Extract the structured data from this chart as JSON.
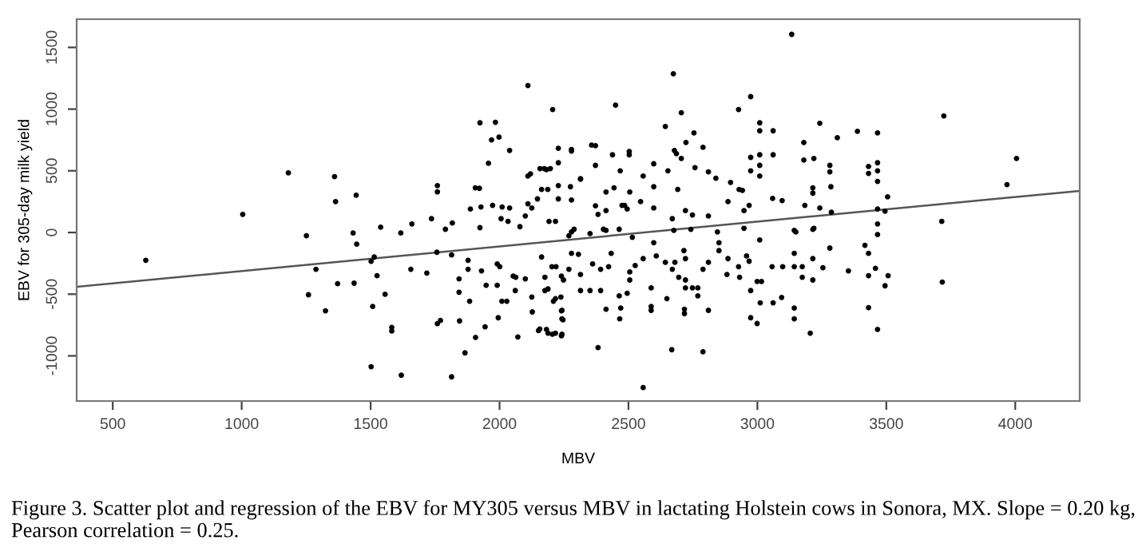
{
  "chart_data": {
    "type": "scatter",
    "xlabel": "MBV",
    "ylabel": "EBV for 305-day milk yield",
    "annotations": [
      "Figure 3. Scatter plot and regression of the EBV for MY305 versus MBV in lactating Holstein cows in Sonora, MX. Slope = 0.20 kg, Pearson correlation = 0.25."
    ],
    "xlim": [
      360,
      4250
    ],
    "ylim": [
      -1366,
      1729
    ],
    "xticks": [
      500,
      1000,
      1500,
      2000,
      2500,
      3000,
      3500,
      4000
    ],
    "yticks": [
      -1000,
      -500,
      0,
      500,
      1000,
      1500
    ],
    "grid": false,
    "series": [
      {
        "marker": "circle",
        "color": "#000000",
        "x": [
          1004,
          1181,
          1360,
          1364,
          1444,
          1432,
          1539,
          1617,
          1660,
          1736,
          1759,
          1759,
          1790,
          1817,
          1887,
          1906,
          1922,
          1924,
          1928,
          1924,
          1957,
          1969,
          1984,
          1998,
          1973,
          2006,
          2010,
          2039,
          2039,
          2033,
          2110,
          2110,
          2120,
          2110,
          2125,
          2147,
          2157,
          2174,
          2163,
          2192,
          2206,
          2228,
          2228,
          2228,
          2228,
          2079,
          2100,
          628,
          1251,
          1259,
          1288,
          1325,
          1372,
          1436,
          1446,
          1502,
          1502,
          1508,
          1514,
          1525,
          1556,
          1582,
          1582,
          1619,
          1656,
          1718,
          1757,
          1759,
          1771,
          1814,
          1814,
          1843,
          1843,
          1845,
          1866,
          1878,
          1878,
          1884,
          1907,
          1944,
          1948,
          1930,
          1991,
          1995,
          1991,
          2001,
          2009,
          2028,
          2053,
          2063,
          2071,
          2061,
          2100,
          2125,
          2127,
          2151,
          2156,
          2163,
          2188,
          2205,
          2209,
          2240,
          2246,
          2240,
          2188,
          2240,
          2269,
          2219,
          2450,
          3133,
          2674,
          2705,
          2643,
          2974,
          2927,
          3009,
          3009,
          3061,
          3242,
          3388,
          3466,
          3310,
          3723,
          4005,
          3968,
          3715,
          2754,
          2723,
          2789,
          2678,
          2686,
          2705,
          3180,
          3061,
          3180,
          3219,
          3281,
          3281,
          3431,
          3431,
          3466,
          3466,
          3466,
          3505,
          3285,
          3215,
          3215,
          3009,
          3009,
          3009,
          2974,
          2974,
          2503,
          2503,
          2438,
          2357,
          2372,
          2279,
          2279,
          2372,
          2314,
          2314,
          2275,
          2468,
          2557,
          2598,
          2653,
          2758,
          2810,
          2839,
          2896,
          2929,
          2942,
          3059,
          3096,
          3184,
          3242,
          3287,
          3466,
          3495,
          2413,
          2444,
          2505,
          2598,
          2691,
          2547,
          2475,
          2372,
          2279,
          2187,
          2182,
          2197,
          2886,
          2968,
          2948,
          2721,
          2748,
          2670,
          2810,
          2598,
          2495,
          2485,
          2382,
          2413,
          2217,
          2289,
          2403,
          3149,
          3219,
          3466,
          3466,
          2557,
          2668,
          2789,
          2382,
          2182,
          2217,
          2242,
          2242,
          2242,
          2413,
          2470,
          2466,
          2588,
          2588,
          2717,
          2717,
          2810,
          2649,
          2974,
          2999,
          3011,
          3061,
          3094,
          3143,
          3143,
          3205,
          3431,
          3466,
          3495,
          3507,
          3431,
          3458,
          3353,
          3717,
          3417,
          3431,
          3281,
          3254,
          3215,
          3215,
          3174,
          3174,
          3143,
          3143,
          3098,
          3057,
          3016,
          2999,
          2974,
          2958,
          2968,
          2927,
          2931,
          2882,
          2886,
          2851,
          2851,
          2810,
          2789,
          2769,
          2769,
          2721,
          2721,
          2748,
          2715,
          2721,
          2670,
          2695,
          2643,
          2680,
          2608,
          2588,
          2557,
          2505,
          2505,
          2526,
          2495,
          2464,
          2433,
          2423,
          2392,
          2392,
          2351,
          2361,
          2314,
          2314,
          2279,
          2306,
          2248,
          2217,
          2238,
          2176,
          2176,
          2203,
          2269,
          2279,
          2351,
          2413,
          2464,
          2515,
          2598,
          2676,
          2742,
          2845,
          2948,
          3009,
          3143,
          3215
        ],
        "values": [
          147,
          483,
          453,
          250,
          302,
          -4,
          43,
          -4,
          69,
          112,
          380,
          329,
          26,
          77,
          190,
          362,
          358,
          889,
          207,
          39,
          561,
          751,
          893,
          773,
          220,
          112,
          207,
          665,
          198,
          90,
          1191,
          457,
          475,
          233,
          198,
          272,
          518,
          518,
          349,
          90,
          997,
          682,
          565,
          380,
          272,
          47,
          134,
          -225,
          -26,
          -505,
          -298,
          -635,
          -415,
          -411,
          -95,
          -234,
          -1088,
          -600,
          -199,
          -350,
          -501,
          -769,
          -799,
          -1157,
          -298,
          -329,
          -160,
          -739,
          -713,
          -1170,
          -182,
          -376,
          -484,
          -717,
          -976,
          -225,
          -298,
          -557,
          -851,
          -765,
          -428,
          -311,
          -428,
          -691,
          -255,
          -277,
          -557,
          -557,
          -354,
          -363,
          -847,
          -471,
          -376,
          -523,
          -644,
          -795,
          -782,
          -199,
          -817,
          -825,
          -557,
          -635,
          -708,
          -354,
          -458,
          -838,
          -26,
          -277,
          1032,
          1606,
          1286,
          971,
          859,
          1101,
          997,
          889,
          824,
          824,
          885,
          820,
          807,
          768,
          945,
          600,
          388,
          90,
          807,
          729,
          690,
          665,
          639,
          600,
          729,
          630,
          587,
          600,
          544,
          492,
          535,
          479,
          565,
          500,
          414,
          289,
          371,
          362,
          319,
          630,
          544,
          457,
          609,
          500,
          656,
          630,
          630,
          708,
          703,
          673,
          660,
          544,
          431,
          436,
          371,
          500,
          457,
          557,
          500,
          526,
          492,
          440,
          406,
          349,
          341,
          276,
          259,
          220,
          198,
          164,
          190,
          173,
          328,
          362,
          328,
          371,
          349,
          250,
          220,
          216,
          263,
          349,
          509,
          518,
          250,
          220,
          177,
          177,
          142,
          112,
          134,
          198,
          190,
          220,
          147,
          177,
          90,
          26,
          26,
          4,
          34,
          69,
          -17,
          -1257,
          -950,
          -967,
          -933,
          -786,
          -816,
          -825,
          -700,
          -631,
          -622,
          -613,
          -700,
          -600,
          -631,
          -622,
          -657,
          -631,
          -536,
          -691,
          -738,
          -570,
          -570,
          -527,
          -613,
          -700,
          -816,
          -609,
          -786,
          -432,
          -350,
          -350,
          -290,
          -311,
          -402,
          -104,
          -169,
          -126,
          -285,
          -212,
          -385,
          -277,
          -363,
          -169,
          -277,
          -277,
          -277,
          -397,
          -397,
          -471,
          -190,
          -233,
          -277,
          -363,
          -341,
          -212,
          -83,
          -147,
          -242,
          -298,
          -449,
          -514,
          -385,
          -449,
          -449,
          -147,
          -212,
          -298,
          -363,
          -242,
          -242,
          -190,
          -449,
          -212,
          -320,
          -385,
          -268,
          -493,
          -514,
          -169,
          -277,
          -298,
          -471,
          -471,
          -255,
          -471,
          -341,
          -169,
          -177,
          -385,
          -536,
          -523,
          -363,
          -471,
          -277,
          -298,
          4,
          -9,
          17,
          26,
          -39,
          -83,
          17,
          25,
          4,
          34,
          -61,
          17,
          25
        ]
      },
      {
        "type": "line",
        "marker": "none",
        "color": "#555555",
        "x": [
          362,
          4247
        ],
        "values": [
          -440,
          337
        ]
      }
    ]
  }
}
